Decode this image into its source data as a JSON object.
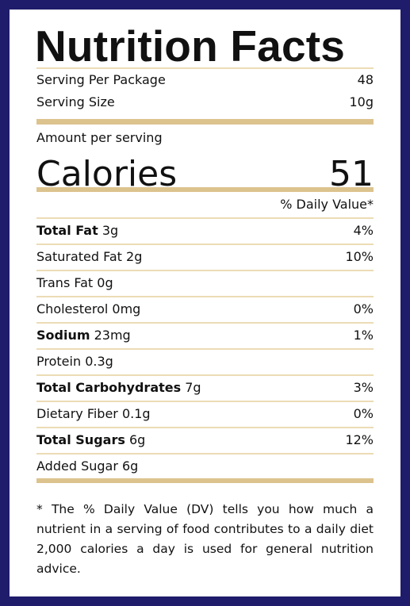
{
  "header": {
    "title": "Nutrition Facts"
  },
  "serving": [
    {
      "label": "Serving Per Package",
      "value": "48"
    },
    {
      "label": "Serving Size",
      "value": "10g"
    }
  ],
  "amount_label": "Amount per serving",
  "calories": {
    "label": "Calories",
    "value": "51"
  },
  "dv_header": "% Daily Value*",
  "nutrients": [
    {
      "name": "Total Fat",
      "amount": "3g",
      "dv": "4%",
      "bold": true
    },
    {
      "name": "Saturated Fat",
      "amount": "2g",
      "dv": "10%",
      "bold": false
    },
    {
      "name": "Trans Fat",
      "amount": "0g",
      "bold": false
    },
    {
      "name": "Cholesterol",
      "amount": "0mg",
      "dv": "0%",
      "bold": false
    },
    {
      "name": "Sodium",
      "amount": "23mg",
      "dv": "1%",
      "bold": true
    },
    {
      "name": "Protein",
      "amount": "0.3g",
      "bold": false
    },
    {
      "name": "Total Carbohydrates",
      "amount": "7g",
      "dv": "3%",
      "bold": true
    },
    {
      "name": "Dietary Fiber",
      "amount": "0.1g",
      "dv": "0%",
      "bold": false
    },
    {
      "name": "Total Sugars",
      "amount": "6g",
      "dv": "12%",
      "bold": true
    },
    {
      "name": "Added Sugar",
      "amount": "6g",
      "bold": false
    }
  ],
  "footnote": "* The % Daily Value (DV) tells you how much a nutrient in a serving of food contributes to a daily diet 2,000 calories a day is used for general nutrition advice."
}
